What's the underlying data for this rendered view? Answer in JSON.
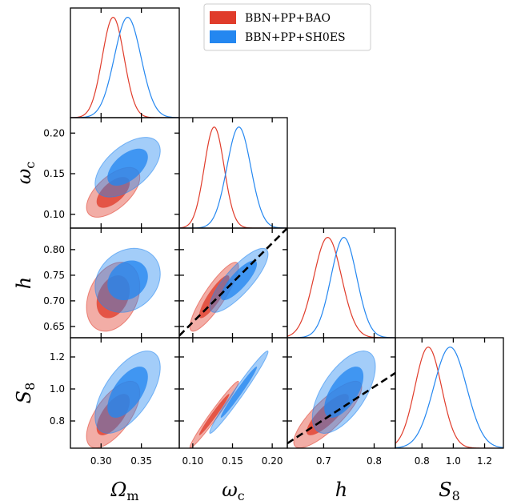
{
  "chart_data": {
    "type": "triangle-corner",
    "parameters": [
      {
        "name": "Omega_m",
        "label": "Ω",
        "sub": "m",
        "range": [
          0.262,
          0.397
        ],
        "ticks": [
          0.3,
          0.35
        ],
        "tick_labels": [
          "0.30",
          "0.35"
        ]
      },
      {
        "name": "omega_c",
        "label": "ω",
        "sub": "c",
        "range": [
          0.083,
          0.219
        ],
        "ticks": [
          0.1,
          0.15,
          0.2
        ],
        "tick_labels": [
          "0.10",
          "0.15",
          "0.20"
        ]
      },
      {
        "name": "h",
        "label": "h",
        "sub": "",
        "range": [
          0.628,
          0.842
        ],
        "ticks": [
          0.65,
          0.7,
          0.75,
          0.8
        ],
        "tick_labels": [
          "0.65",
          "0.70",
          "0.75",
          "0.80"
        ],
        "x_ticks": [
          0.7,
          0.8
        ],
        "x_tick_labels": [
          "0.7",
          "0.8"
        ]
      },
      {
        "name": "S8",
        "label": "S",
        "sub": "8",
        "range": [
          0.63,
          1.32
        ],
        "ticks": [
          0.8,
          1.0,
          1.2
        ],
        "tick_labels": [
          "0.8",
          "1.0",
          "1.2"
        ]
      }
    ],
    "series": [
      {
        "name": "BBN+PP+BAO",
        "color": "#e03c2b",
        "mean": {
          "Omega_m": 0.315,
          "omega_c": 0.127,
          "h": 0.708,
          "S8": 0.84
        },
        "sigma": {
          "Omega_m": 0.0135,
          "omega_c": 0.0125,
          "h": 0.0275,
          "S8": 0.085
        },
        "corr": {
          "omega_c|Omega_m": 0.6,
          "h|Omega_m": 0.3,
          "S8|Omega_m": 0.65,
          "h|omega_c": 0.87,
          "S8|omega_c": 0.98,
          "S8|h": 0.82
        }
      },
      {
        "name": "BBN+PP+SH0ES",
        "color": "#2487f0",
        "mean": {
          "Omega_m": 0.333,
          "omega_c": 0.158,
          "h": 0.74,
          "S8": 0.98
        },
        "sigma": {
          "Omega_m": 0.0165,
          "omega_c": 0.015,
          "h": 0.0255,
          "S8": 0.105
        },
        "corr": {
          "omega_c|Omega_m": 0.55,
          "h|Omega_m": 0.2,
          "S8|Omega_m": 0.6,
          "h|omega_c": 0.82,
          "S8|omega_c": 0.98,
          "S8|h": 0.62
        }
      }
    ],
    "reference_lines": [
      {
        "x_param": "omega_c",
        "y_param": "h",
        "style": "dashed",
        "color": "#000000",
        "points": [
          [
            0.083,
            0.632
          ],
          [
            0.219,
            0.842
          ]
        ]
      },
      {
        "x_param": "h",
        "y_param": "S8",
        "style": "dashed",
        "color": "#000000",
        "points": [
          [
            0.628,
            0.66
          ],
          [
            0.842,
            1.1
          ]
        ]
      }
    ],
    "legend": {
      "placement": "top-right",
      "entries": [
        "BBN+PP+BAO",
        "BBN+PP+SH0ES"
      ]
    },
    "grid": false
  }
}
